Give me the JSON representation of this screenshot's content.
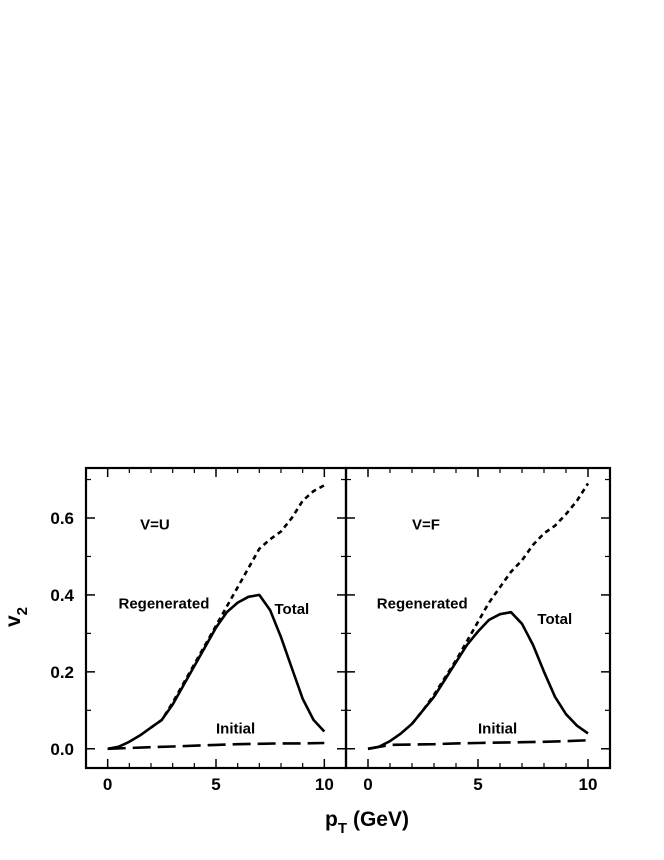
{
  "chart_data": {
    "type": "line",
    "layout": "two panels side by side, shared y-axis",
    "xlabel": "p",
    "xlabel_sub": "T",
    "xlabel_unit": "(GeV)",
    "ylabel": "v",
    "ylabel_sub": "2",
    "xlim": [
      -1,
      11
    ],
    "ylim": [
      -0.05,
      0.73
    ],
    "xticks": [
      0,
      5,
      10
    ],
    "xtick_labels": [
      "0",
      "5",
      "10"
    ],
    "yticks": [
      0.0,
      0.2,
      0.4,
      0.6
    ],
    "ytick_labels": [
      "0.0",
      "0.2",
      "0.4",
      "0.6"
    ],
    "grid": false,
    "panels": [
      {
        "title": "V=U",
        "series": [
          {
            "label": "Total",
            "style": "solid",
            "x": [
              0,
              0.5,
              1,
              1.5,
              2,
              2.5,
              3,
              3.5,
              4,
              4.5,
              5,
              5.5,
              6,
              6.5,
              7,
              7.5,
              8,
              8.5,
              9,
              9.5,
              10
            ],
            "y": [
              0.0,
              0.005,
              0.018,
              0.035,
              0.055,
              0.075,
              0.115,
              0.165,
              0.215,
              0.265,
              0.315,
              0.355,
              0.38,
              0.395,
              0.4,
              0.36,
              0.29,
              0.21,
              0.13,
              0.075,
              0.045
            ]
          },
          {
            "label": "Regenerated",
            "style": "dotted",
            "x": [
              2,
              2.5,
              3,
              3.5,
              4,
              4.5,
              5,
              5.5,
              6,
              6.5,
              7,
              7.5,
              8,
              8.5,
              9,
              9.5,
              10
            ],
            "y": [
              0.055,
              0.075,
              0.12,
              0.17,
              0.22,
              0.27,
              0.32,
              0.37,
              0.42,
              0.47,
              0.52,
              0.545,
              0.565,
              0.6,
              0.645,
              0.67,
              0.685
            ]
          },
          {
            "label": "Initial",
            "style": "dashed",
            "x": [
              0,
              1,
              2,
              3,
              4,
              5,
              6,
              7,
              8,
              9,
              10
            ],
            "y": [
              0.0,
              0.002,
              0.004,
              0.006,
              0.008,
              0.01,
              0.012,
              0.013,
              0.014,
              0.014,
              0.015
            ]
          }
        ]
      },
      {
        "title": "V=F",
        "series": [
          {
            "label": "Total",
            "style": "solid",
            "x": [
              0,
              0.5,
              1,
              1.5,
              2,
              2.5,
              3,
              3.5,
              4,
              4.5,
              5,
              5.5,
              6,
              6.5,
              7,
              7.5,
              8,
              8.5,
              9,
              9.5,
              10
            ],
            "y": [
              0.0,
              0.005,
              0.02,
              0.04,
              0.065,
              0.1,
              0.135,
              0.18,
              0.225,
              0.27,
              0.305,
              0.335,
              0.35,
              0.355,
              0.325,
              0.27,
              0.2,
              0.135,
              0.09,
              0.06,
              0.04
            ]
          },
          {
            "label": "Regenerated",
            "style": "dotted",
            "x": [
              2,
              2.5,
              3,
              3.5,
              4,
              4.5,
              5,
              5.5,
              6,
              6.5,
              7,
              7.5,
              8,
              8.5,
              9,
              9.5,
              10
            ],
            "y": [
              0.065,
              0.1,
              0.14,
              0.185,
              0.23,
              0.28,
              0.33,
              0.38,
              0.42,
              0.46,
              0.49,
              0.53,
              0.56,
              0.58,
              0.61,
              0.645,
              0.69
            ]
          },
          {
            "label": "Initial",
            "style": "dashed",
            "x": [
              0,
              1,
              2,
              3,
              4,
              5,
              6,
              7,
              8,
              9,
              10
            ],
            "y": [
              0.0,
              0.01,
              0.011,
              0.012,
              0.014,
              0.015,
              0.016,
              0.017,
              0.018,
              0.02,
              0.022
            ]
          }
        ]
      }
    ],
    "annotations": [
      {
        "panel": 0,
        "text": "V=U",
        "x": 1.5,
        "y": 0.57
      },
      {
        "panel": 0,
        "text": "Regenerated",
        "x": 0.5,
        "y": 0.365
      },
      {
        "panel": 0,
        "text": "Total",
        "x": 7.7,
        "y": 0.35
      },
      {
        "panel": 0,
        "text": "Initial",
        "x": 5.0,
        "y": 0.04
      },
      {
        "panel": 1,
        "text": "V=F",
        "x": 2.0,
        "y": 0.57
      },
      {
        "panel": 1,
        "text": "Regenerated",
        "x": 0.4,
        "y": 0.365
      },
      {
        "panel": 1,
        "text": "Total",
        "x": 7.7,
        "y": 0.325
      },
      {
        "panel": 1,
        "text": "Initial",
        "x": 5.0,
        "y": 0.04
      }
    ]
  }
}
